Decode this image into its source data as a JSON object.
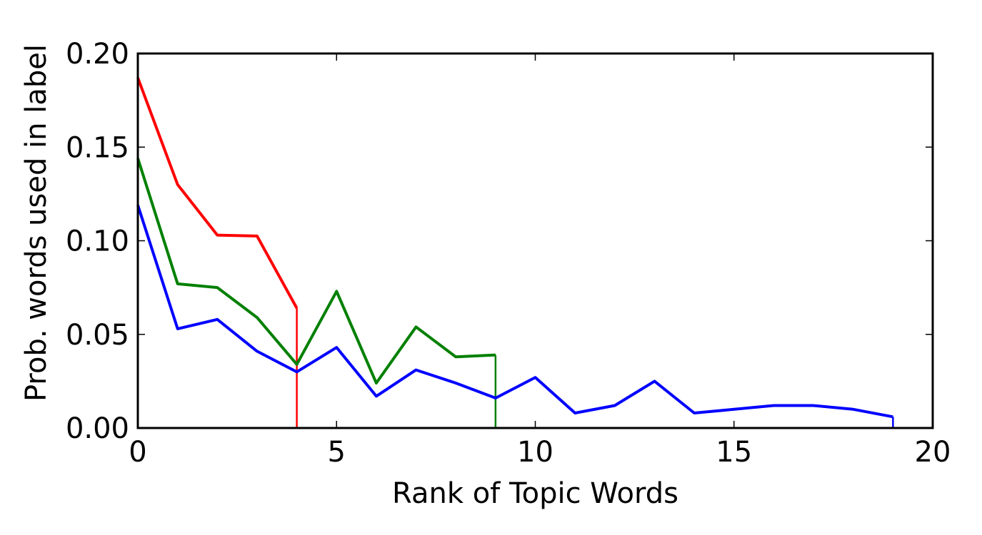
{
  "chart_data": {
    "type": "line",
    "title": "",
    "xlabel": "Rank of Topic Words",
    "ylabel": "Prob. words used in label",
    "xlim": [
      0,
      20
    ],
    "ylim": [
      0,
      0.2
    ],
    "xticks": [
      0,
      5,
      10,
      15,
      20
    ],
    "xtick_labels": [
      "0",
      "5",
      "10",
      "15",
      "20"
    ],
    "yticks": [
      0,
      0.05,
      0.1,
      0.15,
      0.2
    ],
    "ytick_labels": [
      "0.00",
      "0.05",
      "0.10",
      "0.15",
      "0.20"
    ],
    "grid": false,
    "legend": "none",
    "series": [
      {
        "color": "#ff0000",
        "x": [
          0,
          1,
          2,
          3,
          4
        ],
        "values": [
          0.187,
          0.13,
          0.103,
          0.1025,
          0.064
        ]
      },
      {
        "color": "#008000",
        "x": [
          0,
          1,
          2,
          3,
          4,
          5,
          6,
          7,
          8,
          9
        ],
        "values": [
          0.144,
          0.077,
          0.075,
          0.059,
          0.034,
          0.073,
          0.024,
          0.054,
          0.038,
          0.039
        ]
      },
      {
        "color": "#0000ff",
        "x": [
          0,
          1,
          2,
          3,
          4,
          5,
          6,
          7,
          8,
          9,
          10,
          11,
          12,
          13,
          14,
          15,
          16,
          17,
          18,
          19
        ],
        "values": [
          0.119,
          0.053,
          0.058,
          0.041,
          0.03,
          0.043,
          0.017,
          0.031,
          0.024,
          0.016,
          0.027,
          0.008,
          0.012,
          0.025,
          0.008,
          0.01,
          0.012,
          0.012,
          0.01,
          0.006
        ]
      }
    ]
  }
}
